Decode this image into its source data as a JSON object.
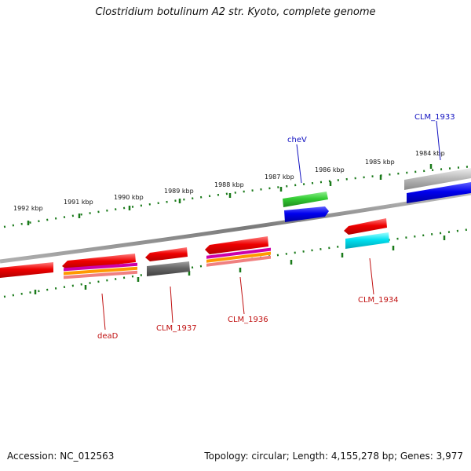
{
  "title": "Clostridium botulinum A2 str. Kyoto, complete genome",
  "accession": "Accession: NC_012563",
  "summary": "Topology: circular; Length: 4,155,278 bp; Genes: 3,977",
  "colors": {
    "backbone": "#8a8a8a",
    "tick": "#1a7a1a",
    "forward_label": "#1010c0",
    "reverse_label": "#c01010",
    "cds_red": "#ee0000",
    "cds_blue": "#0000ee",
    "cds_green": "#33cc33",
    "cds_cyan": "#00e0f0",
    "cds_grey": "#666666",
    "cds_silver": "#bbbbbb"
  },
  "ticks": [
    {
      "label": "1984 kbp",
      "icon": "tick-mark"
    },
    {
      "label": "1985 kbp",
      "icon": "tick-mark"
    },
    {
      "label": "1986 kbp",
      "icon": "tick-mark"
    },
    {
      "label": "1987 kbp",
      "icon": "tick-mark"
    },
    {
      "label": "1988 kbp",
      "icon": "tick-mark"
    },
    {
      "label": "1989 kbp",
      "icon": "tick-mark"
    },
    {
      "label": "1990 kbp",
      "icon": "tick-mark"
    },
    {
      "label": "1991 kbp",
      "icon": "tick-mark"
    },
    {
      "label": "1992 kbp",
      "icon": "tick-mark"
    }
  ],
  "genes": [
    {
      "label": "CLM_1933",
      "strand": "forward"
    },
    {
      "label": "cheV",
      "strand": "forward"
    },
    {
      "label": "CLM_1934",
      "strand": "reverse"
    },
    {
      "label": "CLM_1936",
      "strand": "reverse"
    },
    {
      "label": "CLM_1937",
      "strand": "reverse"
    },
    {
      "label": "deaD",
      "strand": "reverse"
    }
  ]
}
